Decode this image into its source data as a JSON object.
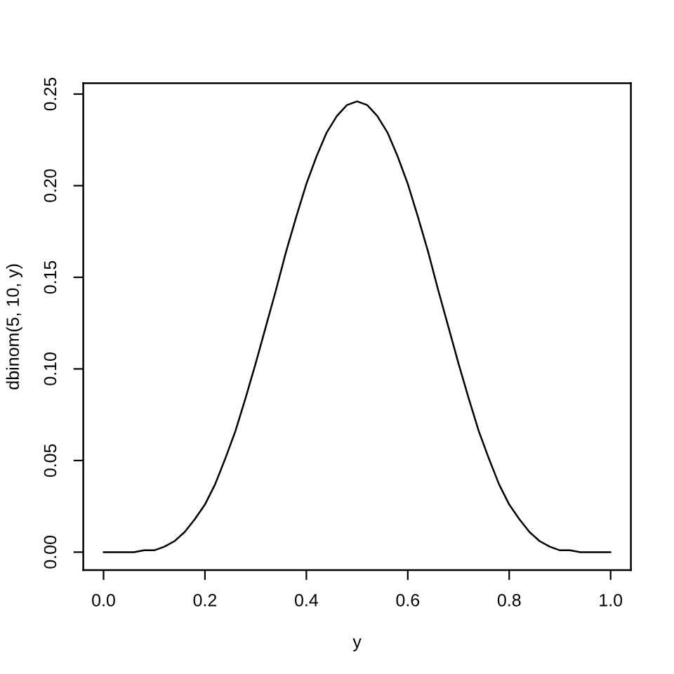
{
  "chart_data": {
    "type": "line",
    "xlabel": "y",
    "ylabel": "dbinom(5, 10, y)",
    "color": "#000000",
    "line_style": "solid",
    "x": [
      0,
      0.02,
      0.04,
      0.06,
      0.08,
      0.1,
      0.12,
      0.14,
      0.16,
      0.18,
      0.2,
      0.22,
      0.24,
      0.26,
      0.28,
      0.3,
      0.32,
      0.34,
      0.36,
      0.38,
      0.4,
      0.42,
      0.44,
      0.46,
      0.48,
      0.5,
      0.52,
      0.54,
      0.56,
      0.58,
      0.6,
      0.62,
      0.64,
      0.66,
      0.68,
      0.7,
      0.72,
      0.74,
      0.76,
      0.78,
      0.8,
      0.82,
      0.84,
      0.86,
      0.88,
      0.9,
      0.92,
      0.94,
      0.96,
      0.98,
      1
    ],
    "values": [
      0,
      0,
      0,
      0,
      0.001,
      0.001,
      0.003,
      0.006,
      0.011,
      0.018,
      0.026,
      0.037,
      0.051,
      0.066,
      0.084,
      0.103,
      0.123,
      0.143,
      0.164,
      0.183,
      0.201,
      0.216,
      0.229,
      0.238,
      0.244,
      0.246,
      0.244,
      0.238,
      0.229,
      0.216,
      0.201,
      0.183,
      0.164,
      0.143,
      0.123,
      0.103,
      0.084,
      0.066,
      0.051,
      0.037,
      0.026,
      0.018,
      0.011,
      0.006,
      0.003,
      0.001,
      0.001,
      0,
      0,
      0,
      0
    ],
    "xlim": [
      -0.04,
      1.04
    ],
    "ylim": [
      -0.0098,
      0.2559
    ],
    "xticks": [
      {
        "value": 0,
        "label": "0.0"
      },
      {
        "value": 0.2,
        "label": "0.2"
      },
      {
        "value": 0.4,
        "label": "0.4"
      },
      {
        "value": 0.6,
        "label": "0.6"
      },
      {
        "value": 0.8,
        "label": "0.8"
      },
      {
        "value": 1,
        "label": "1.0"
      }
    ],
    "yticks": [
      {
        "value": 0,
        "label": "0.00"
      },
      {
        "value": 0.05,
        "label": "0.05"
      },
      {
        "value": 0.1,
        "label": "0.10"
      },
      {
        "value": 0.15,
        "label": "0.15"
      },
      {
        "value": 0.2,
        "label": "0.20"
      },
      {
        "value": 0.25,
        "label": "0.25"
      }
    ]
  }
}
